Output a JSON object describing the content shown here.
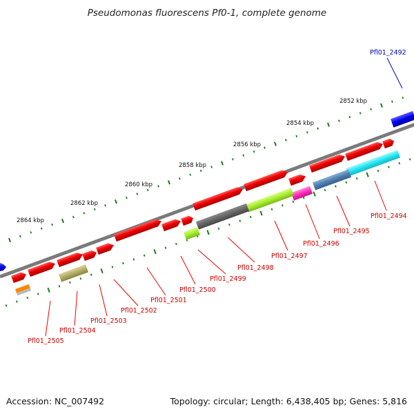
{
  "title": "Pseudomonas fluorescens Pf0-1, complete genome",
  "footer": {
    "accession": "Accession: NC_007492",
    "stats": "Topology: circular; Length: 6,438,405 bp; Genes: 5,816"
  },
  "colors": {
    "forward_gene": "#ee0000",
    "label_text": "#cc0000",
    "label_line": "#ee0000",
    "blue_gene": "#0000ee",
    "blue_label": "#0000bb",
    "backbone": "#777777",
    "tick": "#1a7a1a"
  },
  "scale": {
    "unit": "kbp",
    "labels": [
      "2864 kbp",
      "2862 kbp",
      "2860 kbp",
      "2858 kbp",
      "2856 kbp",
      "2854 kbp",
      "2852 kbp"
    ]
  },
  "gene_labels": [
    "Pfl01_2492",
    "Pfl01_2494",
    "Pfl01_2495",
    "Pfl01_2496",
    "Pfl01_2497",
    "Pfl01_2498",
    "Pfl01_2499",
    "Pfl01_2500",
    "Pfl01_2501",
    "Pfl01_2502",
    "Pfl01_2503",
    "Pfl01_2504",
    "Pfl01_2505"
  ]
}
